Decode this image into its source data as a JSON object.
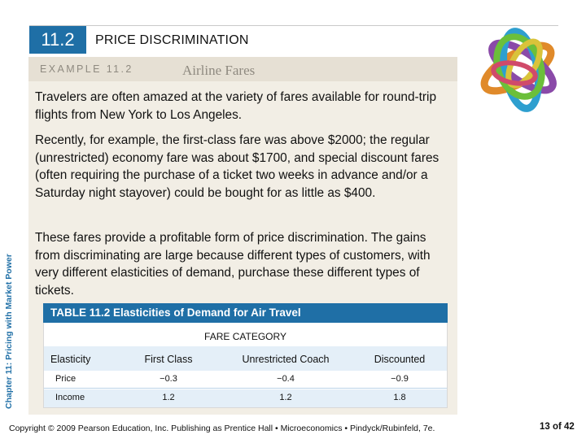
{
  "section": {
    "number": "11.2",
    "title": "PRICE DISCRIMINATION"
  },
  "side_label": "Chapter 11: Pricing with Market Power",
  "example": {
    "label": "EXAMPLE 11.2",
    "title": "Airline Fares"
  },
  "paragraphs": [
    "Travelers are often amazed at the variety of fares available for round-trip flights from New York to Los Angeles.",
    "Recently, for example, the first-class fare was above $2000; the regular (unrestricted) economy fare was about $1700, and special discount fares (often requiring the purchase of a ticket two weeks in advance and/or a Saturday night stayover) could be bought for as little as $400.",
    "These fares provide a profitable form of price discrimination. The gains from discriminating are large because different types of customers, with very different elasticities of demand, purchase these different types of tickets."
  ],
  "table": {
    "caption": "TABLE 11.2  Elasticities of Demand for Air Travel",
    "category_label": "FARE CATEGORY",
    "headers": [
      "Elasticity",
      "First Class",
      "Unrestricted Coach",
      "Discounted"
    ],
    "rows": [
      [
        "Price",
        "−0.3",
        "−0.4",
        "−0.9"
      ],
      [
        "Income",
        "1.2",
        "1.2",
        "1.8"
      ]
    ]
  },
  "footer": "Copyright © 2009 Pearson Education, Inc. Publishing as Prentice Hall • Microeconomics • Pindyck/Rubinfeld, 7e.",
  "page": "13 of 42",
  "colors": {
    "accent": "#1f6fa6",
    "example_bg": "#f2eee5",
    "table_stripe": "#e4eff8"
  }
}
